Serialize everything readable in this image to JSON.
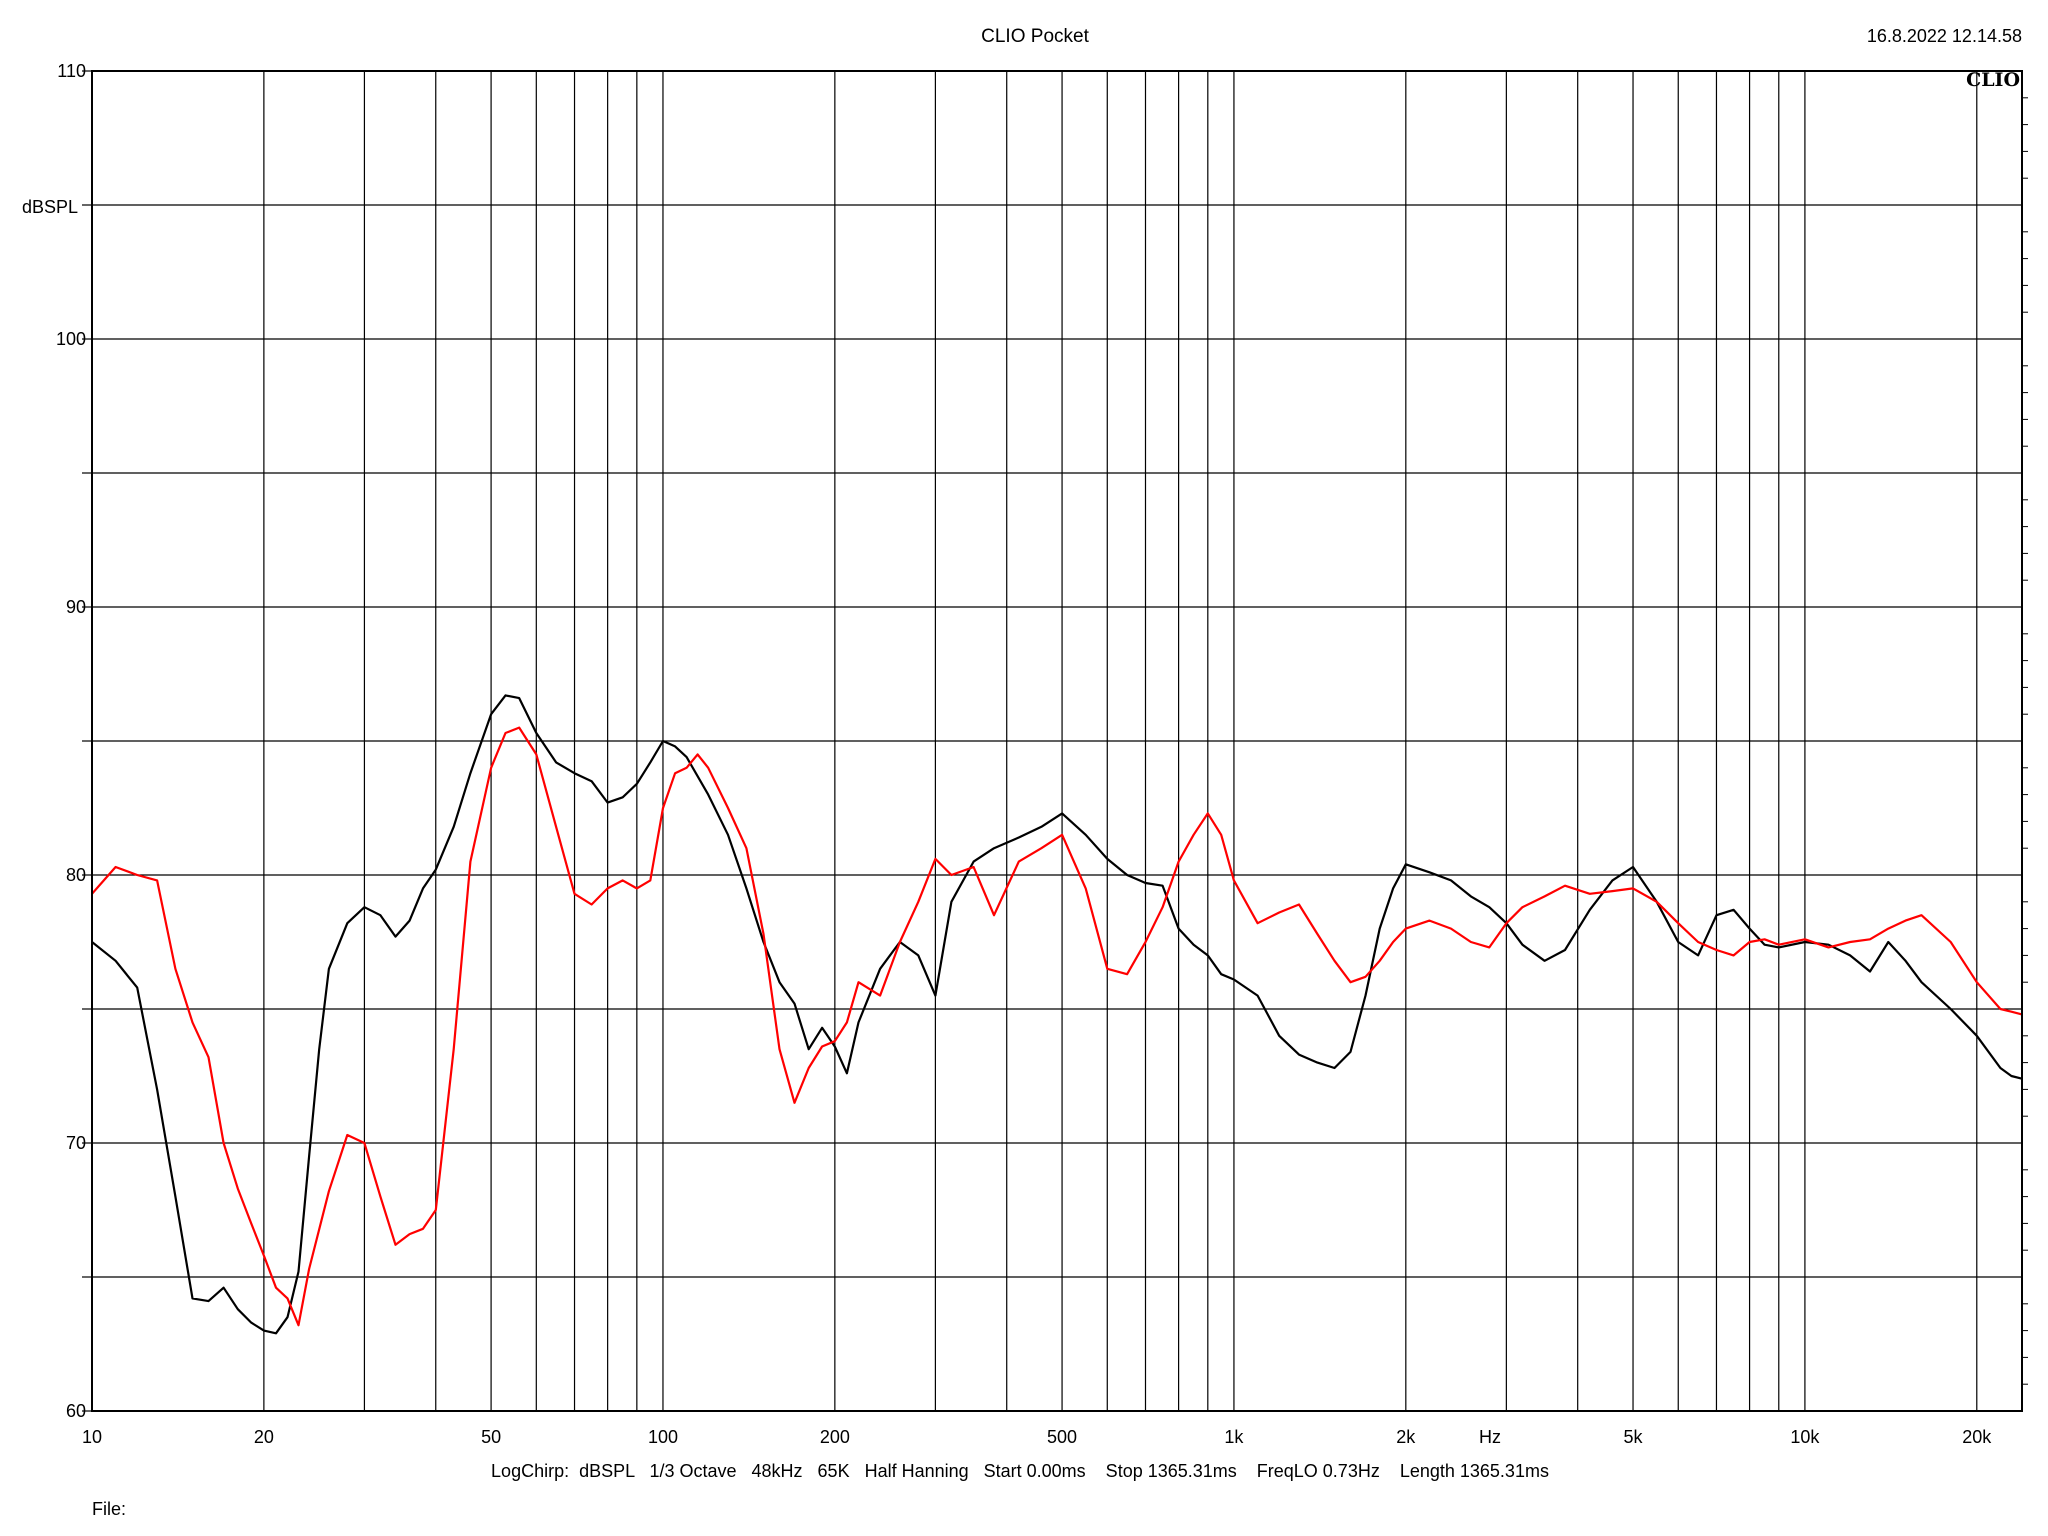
{
  "header": {
    "title": "CLIO Pocket",
    "timestamp": "16.8.2022 12.14.58",
    "logo": "CLIO"
  },
  "footer": {
    "settings": "LogChirp:  dBSPL   1/3 Octave   48kHz   65K   Half Hanning   Start 0.00ms    Stop 1365.31ms    FreqLO 0.73Hz    Length 1365.31ms",
    "file_label": "File:"
  },
  "chart_data": {
    "type": "line",
    "title": "CLIO Pocket",
    "xlabel": "Hz",
    "ylabel": "dBSPL",
    "x_scale": "log",
    "xlim": [
      10,
      24000
    ],
    "ylim": [
      60,
      110
    ],
    "grid": true,
    "y_ticks": [
      {
        "value": 60,
        "label": "60"
      },
      {
        "value": 70,
        "label": "70"
      },
      {
        "value": 80,
        "label": "80"
      },
      {
        "value": 90,
        "label": "90"
      },
      {
        "value": 100,
        "label": "100"
      },
      {
        "value": 110,
        "label": "110"
      }
    ],
    "y_grid": [
      60,
      65,
      70,
      75,
      80,
      85,
      90,
      95,
      100,
      105,
      110
    ],
    "x_ticks": [
      {
        "value": 10,
        "label": "10"
      },
      {
        "value": 20,
        "label": "20"
      },
      {
        "value": 50,
        "label": "50"
      },
      {
        "value": 100,
        "label": "100"
      },
      {
        "value": 200,
        "label": "200"
      },
      {
        "value": 500,
        "label": "500"
      },
      {
        "value": 1000,
        "label": "1k"
      },
      {
        "value": 2000,
        "label": "2k"
      },
      {
        "value": 5000,
        "label": "5k"
      },
      {
        "value": 10000,
        "label": "10k"
      },
      {
        "value": 20000,
        "label": "20k"
      }
    ],
    "x_grid": [
      10,
      20,
      30,
      40,
      50,
      60,
      70,
      80,
      90,
      100,
      200,
      300,
      400,
      500,
      600,
      700,
      800,
      900,
      1000,
      2000,
      3000,
      4000,
      5000,
      6000,
      7000,
      8000,
      9000,
      10000,
      20000
    ],
    "series": [
      {
        "color": "#000000",
        "points": [
          [
            10,
            77.5
          ],
          [
            11,
            76.8
          ],
          [
            12,
            75.8
          ],
          [
            13,
            72
          ],
          [
            14,
            68
          ],
          [
            15,
            64.2
          ],
          [
            16,
            64.1
          ],
          [
            17,
            64.6
          ],
          [
            18,
            63.8
          ],
          [
            19,
            63.3
          ],
          [
            20,
            63.0
          ],
          [
            21,
            62.9
          ],
          [
            22,
            63.5
          ],
          [
            23,
            65.2
          ],
          [
            24,
            69.5
          ],
          [
            25,
            73.5
          ],
          [
            26,
            76.5
          ],
          [
            28,
            78.2
          ],
          [
            30,
            78.8
          ],
          [
            32,
            78.5
          ],
          [
            34,
            77.7
          ],
          [
            36,
            78.3
          ],
          [
            38,
            79.5
          ],
          [
            40,
            80.2
          ],
          [
            43,
            81.8
          ],
          [
            46,
            83.8
          ],
          [
            50,
            86.0
          ],
          [
            53,
            86.7
          ],
          [
            56,
            86.6
          ],
          [
            60,
            85.3
          ],
          [
            65,
            84.2
          ],
          [
            70,
            83.8
          ],
          [
            75,
            83.5
          ],
          [
            80,
            82.7
          ],
          [
            85,
            82.9
          ],
          [
            90,
            83.4
          ],
          [
            95,
            84.2
          ],
          [
            100,
            85.0
          ],
          [
            105,
            84.8
          ],
          [
            110,
            84.4
          ],
          [
            120,
            83.0
          ],
          [
            130,
            81.5
          ],
          [
            140,
            79.5
          ],
          [
            150,
            77.5
          ],
          [
            160,
            76.0
          ],
          [
            170,
            75.2
          ],
          [
            180,
            73.5
          ],
          [
            190,
            74.3
          ],
          [
            200,
            73.6
          ],
          [
            210,
            72.6
          ],
          [
            220,
            74.5
          ],
          [
            240,
            76.5
          ],
          [
            260,
            77.5
          ],
          [
            280,
            77.0
          ],
          [
            300,
            75.5
          ],
          [
            320,
            79.0
          ],
          [
            350,
            80.5
          ],
          [
            380,
            81.0
          ],
          [
            420,
            81.4
          ],
          [
            460,
            81.8
          ],
          [
            500,
            82.3
          ],
          [
            550,
            81.5
          ],
          [
            600,
            80.6
          ],
          [
            650,
            80.0
          ],
          [
            700,
            79.7
          ],
          [
            750,
            79.6
          ],
          [
            800,
            78.0
          ],
          [
            850,
            77.4
          ],
          [
            900,
            77.0
          ],
          [
            950,
            76.3
          ],
          [
            1000,
            76.1
          ],
          [
            1100,
            75.5
          ],
          [
            1200,
            74.0
          ],
          [
            1300,
            73.3
          ],
          [
            1400,
            73.0
          ],
          [
            1500,
            72.8
          ],
          [
            1600,
            73.4
          ],
          [
            1700,
            75.5
          ],
          [
            1800,
            78.0
          ],
          [
            1900,
            79.5
          ],
          [
            2000,
            80.4
          ],
          [
            2200,
            80.1
          ],
          [
            2400,
            79.8
          ],
          [
            2600,
            79.2
          ],
          [
            2800,
            78.8
          ],
          [
            3000,
            78.2
          ],
          [
            3200,
            77.4
          ],
          [
            3500,
            76.8
          ],
          [
            3800,
            77.2
          ],
          [
            4200,
            78.7
          ],
          [
            4600,
            79.8
          ],
          [
            5000,
            80.3
          ],
          [
            5500,
            79.0
          ],
          [
            6000,
            77.5
          ],
          [
            6500,
            77.0
          ],
          [
            7000,
            78.5
          ],
          [
            7500,
            78.7
          ],
          [
            8000,
            78.0
          ],
          [
            8500,
            77.4
          ],
          [
            9000,
            77.3
          ],
          [
            10000,
            77.5
          ],
          [
            11000,
            77.4
          ],
          [
            12000,
            77.0
          ],
          [
            13000,
            76.4
          ],
          [
            14000,
            77.5
          ],
          [
            15000,
            76.8
          ],
          [
            16000,
            76.0
          ],
          [
            18000,
            75.0
          ],
          [
            20000,
            74.0
          ],
          [
            22000,
            72.8
          ],
          [
            23000,
            72.5
          ],
          [
            24000,
            72.4
          ]
        ]
      },
      {
        "color": "#ff0000",
        "points": [
          [
            10,
            79.3
          ],
          [
            11,
            80.3
          ],
          [
            12,
            80.0
          ],
          [
            13,
            79.8
          ],
          [
            14,
            76.5
          ],
          [
            15,
            74.5
          ],
          [
            16,
            73.2
          ],
          [
            17,
            70.0
          ],
          [
            18,
            68.3
          ],
          [
            19,
            67.0
          ],
          [
            20,
            65.8
          ],
          [
            21,
            64.6
          ],
          [
            22,
            64.2
          ],
          [
            23,
            63.2
          ],
          [
            24,
            65.3
          ],
          [
            26,
            68.2
          ],
          [
            28,
            70.3
          ],
          [
            30,
            70.0
          ],
          [
            32,
            68.0
          ],
          [
            34,
            66.2
          ],
          [
            36,
            66.6
          ],
          [
            38,
            66.8
          ],
          [
            40,
            67.5
          ],
          [
            43,
            73.5
          ],
          [
            46,
            80.5
          ],
          [
            50,
            84.0
          ],
          [
            53,
            85.3
          ],
          [
            56,
            85.5
          ],
          [
            60,
            84.5
          ],
          [
            65,
            81.8
          ],
          [
            70,
            79.3
          ],
          [
            75,
            78.9
          ],
          [
            80,
            79.5
          ],
          [
            85,
            79.8
          ],
          [
            90,
            79.5
          ],
          [
            95,
            79.8
          ],
          [
            100,
            82.5
          ],
          [
            105,
            83.8
          ],
          [
            110,
            84.0
          ],
          [
            115,
            84.5
          ],
          [
            120,
            84.0
          ],
          [
            130,
            82.5
          ],
          [
            140,
            81.0
          ],
          [
            150,
            77.8
          ],
          [
            160,
            73.5
          ],
          [
            170,
            71.5
          ],
          [
            180,
            72.8
          ],
          [
            190,
            73.6
          ],
          [
            200,
            73.8
          ],
          [
            210,
            74.5
          ],
          [
            220,
            76.0
          ],
          [
            240,
            75.5
          ],
          [
            260,
            77.5
          ],
          [
            280,
            79.0
          ],
          [
            300,
            80.6
          ],
          [
            320,
            80.0
          ],
          [
            350,
            80.3
          ],
          [
            380,
            78.5
          ],
          [
            420,
            80.5
          ],
          [
            460,
            81.0
          ],
          [
            500,
            81.5
          ],
          [
            550,
            79.5
          ],
          [
            600,
            76.5
          ],
          [
            650,
            76.3
          ],
          [
            700,
            77.5
          ],
          [
            750,
            78.8
          ],
          [
            800,
            80.5
          ],
          [
            850,
            81.5
          ],
          [
            900,
            82.3
          ],
          [
            950,
            81.5
          ],
          [
            1000,
            79.8
          ],
          [
            1100,
            78.2
          ],
          [
            1200,
            78.6
          ],
          [
            1300,
            78.9
          ],
          [
            1400,
            77.8
          ],
          [
            1500,
            76.8
          ],
          [
            1600,
            76.0
          ],
          [
            1700,
            76.2
          ],
          [
            1800,
            76.8
          ],
          [
            1900,
            77.5
          ],
          [
            2000,
            78.0
          ],
          [
            2200,
            78.3
          ],
          [
            2400,
            78.0
          ],
          [
            2600,
            77.5
          ],
          [
            2800,
            77.3
          ],
          [
            3000,
            78.2
          ],
          [
            3200,
            78.8
          ],
          [
            3500,
            79.2
          ],
          [
            3800,
            79.6
          ],
          [
            4200,
            79.3
          ],
          [
            4600,
            79.4
          ],
          [
            5000,
            79.5
          ],
          [
            5500,
            79.0
          ],
          [
            6000,
            78.2
          ],
          [
            6500,
            77.5
          ],
          [
            7000,
            77.2
          ],
          [
            7500,
            77.0
          ],
          [
            8000,
            77.5
          ],
          [
            8500,
            77.6
          ],
          [
            9000,
            77.4
          ],
          [
            10000,
            77.6
          ],
          [
            11000,
            77.3
          ],
          [
            12000,
            77.5
          ],
          [
            13000,
            77.6
          ],
          [
            14000,
            78.0
          ],
          [
            15000,
            78.3
          ],
          [
            16000,
            78.5
          ],
          [
            18000,
            77.5
          ],
          [
            20000,
            76.0
          ],
          [
            22000,
            75.0
          ],
          [
            23000,
            74.9
          ],
          [
            24000,
            74.8
          ]
        ]
      }
    ]
  }
}
